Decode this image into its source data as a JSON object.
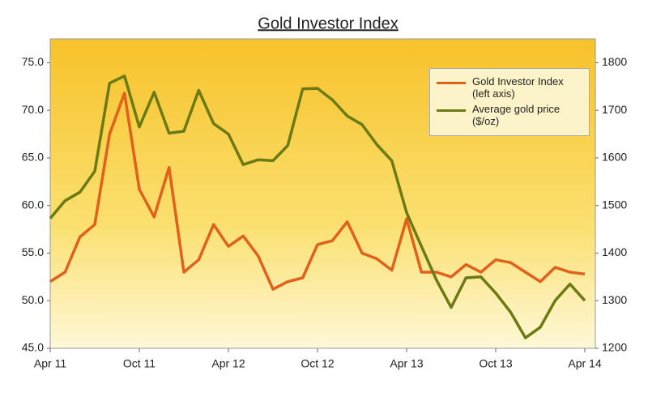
{
  "chart_data": {
    "type": "line",
    "title": "Gold Investor  Index",
    "categories": [
      "Apr 11",
      null,
      null,
      null,
      null,
      null,
      "Oct 11",
      null,
      null,
      null,
      null,
      null,
      "Apr 12",
      null,
      null,
      null,
      null,
      null,
      "Oct 12",
      null,
      null,
      null,
      null,
      null,
      "Apr 13",
      null,
      null,
      null,
      null,
      null,
      "Oct 13",
      null,
      null,
      null,
      null,
      null,
      "Apr 14"
    ],
    "series": [
      {
        "name": "Gold Investor Index (left axis)",
        "color": "#e0601c",
        "axis": "y",
        "values": [
          52.0,
          53.0,
          56.7,
          58.0,
          67.5,
          71.8,
          61.7,
          58.8,
          64.0,
          53.0,
          54.3,
          58.0,
          55.7,
          56.8,
          54.7,
          51.2,
          52.0,
          52.4,
          55.9,
          56.3,
          58.3,
          55.0,
          54.4,
          53.2,
          58.6,
          53.0,
          53.0,
          52.5,
          53.8,
          53.0,
          54.3,
          54.0,
          53.0,
          52.0,
          53.5,
          53.0,
          52.8
        ]
      },
      {
        "name": "Average gold price ($/oz)",
        "color": "#6b7a12",
        "axis": "y2",
        "values": [
          1473,
          1510,
          1528,
          1572,
          1757,
          1772,
          1665,
          1738,
          1652,
          1656,
          1742,
          1672,
          1650,
          1586,
          1596,
          1594,
          1626,
          1745,
          1746,
          1722,
          1688,
          1670,
          1628,
          1594,
          1485,
          1414,
          1344,
          1286,
          1348,
          1350,
          1316,
          1276,
          1222,
          1244,
          1300,
          1335,
          1300
        ]
      }
    ],
    "ylim": [
      45,
      77.5
    ],
    "yticks": [
      {
        "value": 45,
        "label": "45.0"
      },
      {
        "value": 50,
        "label": "50.0"
      },
      {
        "value": 55,
        "label": "55.0"
      },
      {
        "value": 60,
        "label": "60.0"
      },
      {
        "value": 65,
        "label": "65.0"
      },
      {
        "value": 70,
        "label": "70.0"
      },
      {
        "value": 75,
        "label": "75.0"
      }
    ],
    "y2lim": [
      1200,
      1850
    ],
    "y2ticks": [
      1200,
      1300,
      1400,
      1500,
      1600,
      1700,
      1800
    ],
    "legend": "upper right"
  }
}
